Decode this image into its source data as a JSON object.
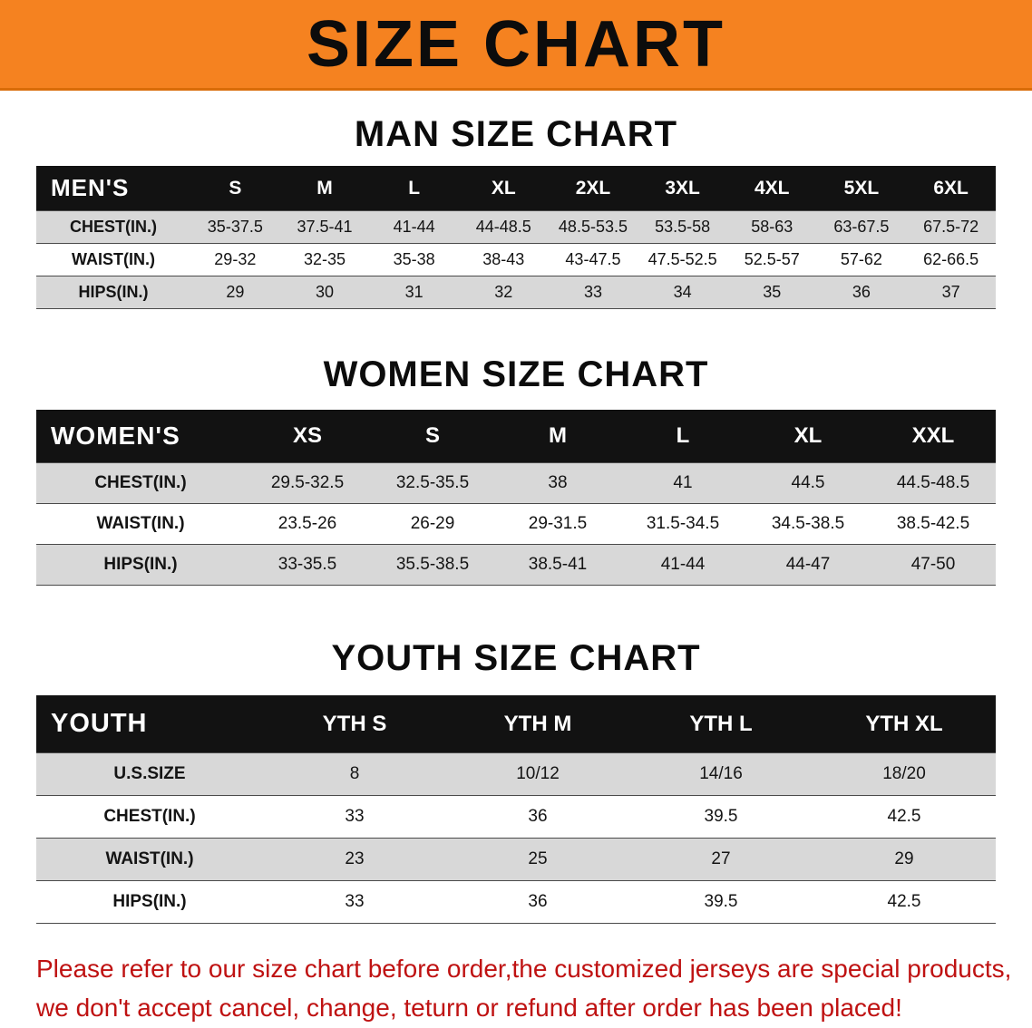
{
  "banner": {
    "title": "SIZE CHART"
  },
  "colors": {
    "banner_orange": "#f58220",
    "header_black": "#121212",
    "row_gray": "#d8d8d8",
    "disclaimer_red": "#bf1212"
  },
  "sections": [
    {
      "key": "men",
      "heading": "MAN SIZE CHART",
      "table": {
        "header": [
          "MEN'S",
          "S",
          "M",
          "L",
          "XL",
          "2XL",
          "3XL",
          "4XL",
          "5XL",
          "6XL"
        ],
        "rows": [
          [
            "CHEST(IN.)",
            "35-37.5",
            "37.5-41",
            "41-44",
            "44-48.5",
            "48.5-53.5",
            "53.5-58",
            "58-63",
            "63-67.5",
            "67.5-72"
          ],
          [
            "WAIST(IN.)",
            "29-32",
            "32-35",
            "35-38",
            "38-43",
            "43-47.5",
            "47.5-52.5",
            "52.5-57",
            "57-62",
            "62-66.5"
          ],
          [
            "HIPS(IN.)",
            "29",
            "30",
            "31",
            "32",
            "33",
            "34",
            "35",
            "36",
            "37"
          ]
        ]
      }
    },
    {
      "key": "women",
      "heading": "WOMEN SIZE CHART",
      "table": {
        "header": [
          "WOMEN'S",
          "XS",
          "S",
          "M",
          "L",
          "XL",
          "XXL"
        ],
        "rows": [
          [
            "CHEST(IN.)",
            "29.5-32.5",
            "32.5-35.5",
            "38",
            "41",
            "44.5",
            "44.5-48.5"
          ],
          [
            "WAIST(IN.)",
            "23.5-26",
            "26-29",
            "29-31.5",
            "31.5-34.5",
            "34.5-38.5",
            "38.5-42.5"
          ],
          [
            "HIPS(IN.)",
            "33-35.5",
            "35.5-38.5",
            "38.5-41",
            "41-44",
            "44-47",
            "47-50"
          ]
        ]
      }
    },
    {
      "key": "youth",
      "heading": "YOUTH SIZE CHART",
      "table": {
        "header": [
          "YOUTH",
          "YTH S",
          "YTH M",
          "YTH L",
          "YTH XL"
        ],
        "rows": [
          [
            "U.S.SIZE",
            "8",
            "10/12",
            "14/16",
            "18/20"
          ],
          [
            "CHEST(IN.)",
            "33",
            "36",
            "39.5",
            "42.5"
          ],
          [
            "WAIST(IN.)",
            "23",
            "25",
            "27",
            "29"
          ],
          [
            "HIPS(IN.)",
            "33",
            "36",
            "39.5",
            "42.5"
          ]
        ]
      }
    }
  ],
  "disclaimer": {
    "line1": "Please refer to our size chart before order,the customized jerseys are special products,",
    "line2": "we don't accept cancel, change, teturn or refund after order has been placed!"
  }
}
